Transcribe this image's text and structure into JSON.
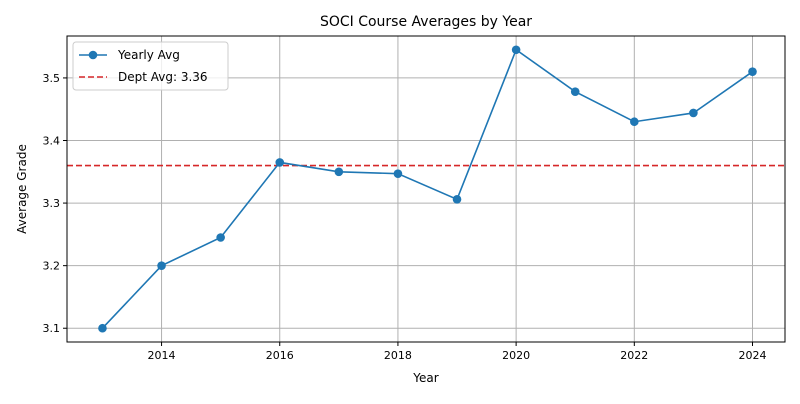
{
  "chart_data": {
    "type": "line",
    "title": "SOCI Course Averages by Year",
    "xlabel": "Year",
    "ylabel": "Average Grade",
    "xlim": [
      2012.4,
      2024.55
    ],
    "ylim": [
      3.078,
      3.567
    ],
    "x_ticks": [
      2014,
      2016,
      2018,
      2020,
      2022,
      2024
    ],
    "y_ticks": [
      3.1,
      3.2,
      3.3,
      3.4,
      3.5
    ],
    "grid": true,
    "legend_position": "top-left",
    "series": [
      {
        "name": "Yearly Avg",
        "color": "#1f77b4",
        "marker": "circle",
        "x": [
          2013,
          2014,
          2015,
          2016,
          2017,
          2018,
          2019,
          2020,
          2021,
          2022,
          2023,
          2024
        ],
        "y": [
          3.1,
          3.2,
          3.245,
          3.365,
          3.35,
          3.347,
          3.306,
          3.545,
          3.478,
          3.43,
          3.444,
          3.51
        ]
      }
    ],
    "reference_lines": [
      {
        "name": "Dept Avg: 3.36",
        "y": 3.36,
        "color": "#d62728",
        "style": "dashed"
      }
    ]
  }
}
